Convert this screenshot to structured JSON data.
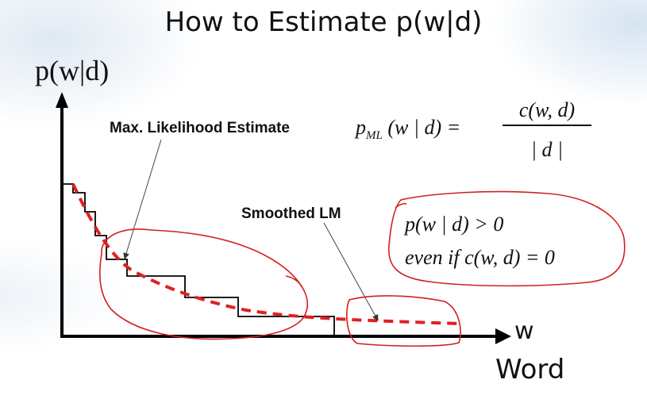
{
  "slide": {
    "title": "How to Estimate p(w|d)",
    "y_axis_label": "p(w|d)",
    "x_axis_symbol": "w",
    "x_axis_label": "Word"
  },
  "labels": {
    "ml_estimate": "Max. Likelihood Estimate",
    "smoothed": "Smoothed LM"
  },
  "formulas": {
    "ml_lhs_p": "p",
    "ml_lhs_sub": "ML",
    "ml_lhs_rest": "(w | d) =",
    "ml_numerator": "c(w, d)",
    "ml_denominator": "| d |",
    "smooth_line1": "p(w | d) > 0",
    "smooth_line2_a": "even  if  ",
    "smooth_line2_b": "c(w, d) = 0"
  },
  "colors": {
    "axis": "#000000",
    "ml_step": "#000000",
    "smoothed_curve": "#e02020",
    "annotation_ink": "#d02020"
  }
}
